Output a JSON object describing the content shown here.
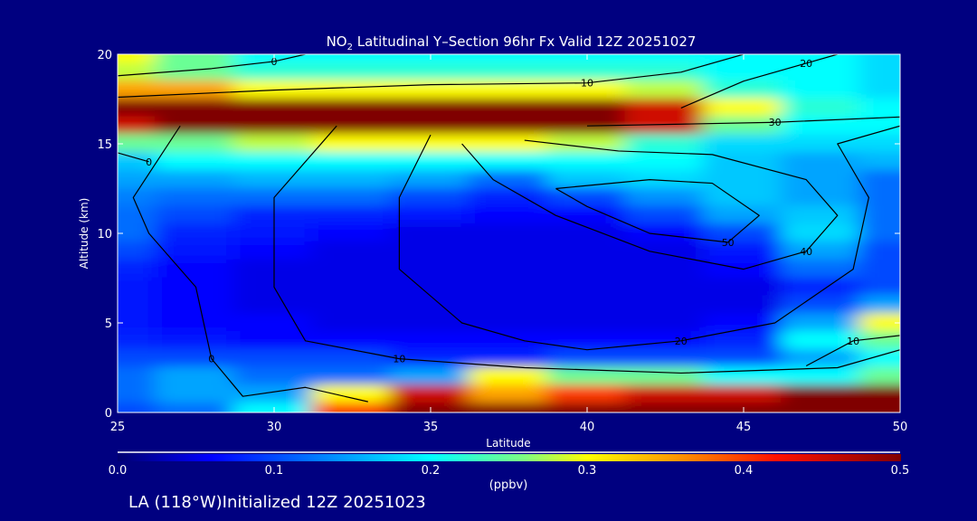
{
  "chart_data": {
    "type": "heatmap",
    "title_prefix": "NO",
    "title_sub": "2",
    "title_rest": " Latitudinal Y–Section 96hr  Fx Valid 12Z 20251027",
    "xlabel": "Latitude",
    "ylabel": "Altitude (km)",
    "xlim": [
      25,
      50
    ],
    "ylim": [
      0,
      20
    ],
    "xticks": [
      "25",
      "30",
      "35",
      "40",
      "45",
      "50"
    ],
    "yticks": [
      "0",
      "5",
      "10",
      "15",
      "20"
    ],
    "colorbar": {
      "min": 0.0,
      "max": 0.5,
      "ticks": [
        "0.0",
        "0.1",
        "0.2",
        "0.3",
        "0.4",
        "0.5"
      ],
      "label": "(ppbv)"
    },
    "grid_lat": [
      25,
      27.5,
      30,
      32.5,
      35,
      37.5,
      40,
      42.5,
      45,
      47.5,
      50
    ],
    "grid_alt": [
      20,
      19,
      18,
      17,
      16,
      15,
      14,
      13,
      12,
      11,
      10,
      9,
      8,
      7,
      6,
      5,
      4,
      3,
      2,
      1,
      0
    ],
    "values": [
      [
        0.3,
        0.25,
        0.2,
        0.2,
        0.2,
        0.2,
        0.2,
        0.2,
        0.2,
        0.2,
        0.18
      ],
      [
        0.28,
        0.25,
        0.22,
        0.22,
        0.22,
        0.22,
        0.22,
        0.22,
        0.2,
        0.2,
        0.18
      ],
      [
        0.35,
        0.35,
        0.3,
        0.3,
        0.3,
        0.3,
        0.3,
        0.28,
        0.22,
        0.2,
        0.18
      ],
      [
        0.5,
        0.5,
        0.5,
        0.5,
        0.5,
        0.5,
        0.5,
        0.45,
        0.3,
        0.22,
        0.2
      ],
      [
        0.45,
        0.5,
        0.5,
        0.5,
        0.5,
        0.5,
        0.5,
        0.45,
        0.25,
        0.2,
        0.2
      ],
      [
        0.25,
        0.25,
        0.28,
        0.3,
        0.3,
        0.3,
        0.28,
        0.22,
        0.18,
        0.18,
        0.18
      ],
      [
        0.17,
        0.2,
        0.2,
        0.2,
        0.2,
        0.2,
        0.2,
        0.2,
        0.17,
        0.15,
        0.16
      ],
      [
        0.15,
        0.15,
        0.16,
        0.16,
        0.15,
        0.12,
        0.17,
        0.18,
        0.17,
        0.15,
        0.12
      ],
      [
        0.13,
        0.12,
        0.12,
        0.12,
        0.1,
        0.08,
        0.1,
        0.14,
        0.17,
        0.15,
        0.12
      ],
      [
        0.12,
        0.1,
        0.08,
        0.08,
        0.07,
        0.06,
        0.06,
        0.1,
        0.15,
        0.17,
        0.12
      ],
      [
        0.12,
        0.08,
        0.07,
        0.06,
        0.05,
        0.05,
        0.05,
        0.06,
        0.1,
        0.18,
        0.12
      ],
      [
        0.1,
        0.07,
        0.06,
        0.05,
        0.05,
        0.05,
        0.05,
        0.05,
        0.07,
        0.15,
        0.1
      ],
      [
        0.08,
        0.06,
        0.05,
        0.05,
        0.05,
        0.05,
        0.05,
        0.05,
        0.06,
        0.12,
        0.1
      ],
      [
        0.07,
        0.06,
        0.05,
        0.05,
        0.05,
        0.05,
        0.05,
        0.05,
        0.05,
        0.08,
        0.1
      ],
      [
        0.07,
        0.06,
        0.05,
        0.05,
        0.05,
        0.05,
        0.05,
        0.05,
        0.05,
        0.1,
        0.15
      ],
      [
        0.07,
        0.06,
        0.06,
        0.05,
        0.05,
        0.05,
        0.05,
        0.05,
        0.06,
        0.15,
        0.3
      ],
      [
        0.08,
        0.07,
        0.06,
        0.06,
        0.06,
        0.06,
        0.06,
        0.06,
        0.08,
        0.2,
        0.25
      ],
      [
        0.1,
        0.1,
        0.1,
        0.1,
        0.08,
        0.08,
        0.1,
        0.1,
        0.1,
        0.15,
        0.2
      ],
      [
        0.12,
        0.15,
        0.12,
        0.12,
        0.15,
        0.3,
        0.25,
        0.25,
        0.2,
        0.2,
        0.25
      ],
      [
        0.12,
        0.15,
        0.15,
        0.3,
        0.45,
        0.35,
        0.4,
        0.45,
        0.45,
        0.5,
        0.5
      ],
      [
        0.1,
        0.12,
        0.2,
        0.4,
        0.5,
        0.5,
        0.5,
        0.5,
        0.5,
        0.5,
        0.5
      ]
    ],
    "contours": [
      {
        "label": "0",
        "points": [
          [
            25,
            18.8
          ],
          [
            28,
            19.2
          ],
          [
            30,
            19.6
          ],
          [
            31,
            20
          ]
        ]
      },
      {
        "label": "10",
        "points": [
          [
            25,
            17.6
          ],
          [
            30,
            18
          ],
          [
            35,
            18.3
          ],
          [
            40,
            18.4
          ],
          [
            43,
            19
          ],
          [
            45,
            20
          ]
        ]
      },
      {
        "label": "20",
        "points": [
          [
            43,
            17
          ],
          [
            45,
            18.5
          ],
          [
            47,
            19.5
          ],
          [
            48,
            20
          ]
        ]
      },
      {
        "label": "30",
        "points": [
          [
            40,
            16
          ],
          [
            43,
            16.1
          ],
          [
            46,
            16.2
          ],
          [
            50,
            16.5
          ]
        ]
      },
      {
        "label": "40",
        "points": [
          [
            38,
            15.2
          ],
          [
            41,
            14.6
          ],
          [
            44,
            14.4
          ],
          [
            47,
            13
          ],
          [
            48,
            11
          ],
          [
            47,
            9
          ],
          [
            45,
            8
          ],
          [
            42,
            9
          ],
          [
            39,
            11
          ],
          [
            37,
            13
          ],
          [
            36,
            15
          ]
        ]
      },
      {
        "label": "50",
        "points": [
          [
            39,
            12.5
          ],
          [
            42,
            13
          ],
          [
            44,
            12.8
          ],
          [
            45.5,
            11
          ],
          [
            44.5,
            9.5
          ],
          [
            42,
            10
          ],
          [
            40,
            11.5
          ],
          [
            39,
            12.5
          ]
        ]
      },
      {
        "label": "20",
        "points": [
          [
            35,
            15.5
          ],
          [
            34,
            12
          ],
          [
            34,
            8
          ],
          [
            36,
            5
          ],
          [
            38,
            4
          ],
          [
            40,
            3.5
          ],
          [
            43,
            4
          ],
          [
            46,
            5
          ],
          [
            48.5,
            8
          ],
          [
            49,
            12
          ],
          [
            48,
            15
          ],
          [
            50,
            16
          ]
        ]
      },
      {
        "label": "10",
        "points": [
          [
            32,
            16
          ],
          [
            30,
            12
          ],
          [
            30,
            7
          ],
          [
            31,
            4
          ],
          [
            34,
            3
          ],
          [
            38,
            2.5
          ],
          [
            43,
            2.2
          ],
          [
            48,
            2.5
          ],
          [
            50,
            3.5
          ]
        ]
      },
      {
        "label": "10",
        "points": [
          [
            47,
            2.6
          ],
          [
            48.5,
            4
          ],
          [
            50,
            4.3
          ]
        ]
      },
      {
        "label": "0",
        "points": [
          [
            27,
            16
          ],
          [
            25.5,
            12
          ],
          [
            26,
            10
          ],
          [
            27.5,
            7
          ],
          [
            28,
            3
          ],
          [
            29,
            0.9
          ],
          [
            31,
            1.4
          ],
          [
            33,
            0.6
          ]
        ]
      },
      {
        "label": "0",
        "points": [
          [
            25,
            14.5
          ],
          [
            26,
            14
          ]
        ]
      }
    ]
  },
  "footer": {
    "init_text": "LA (118°W)Initialized 12Z 20251023"
  }
}
